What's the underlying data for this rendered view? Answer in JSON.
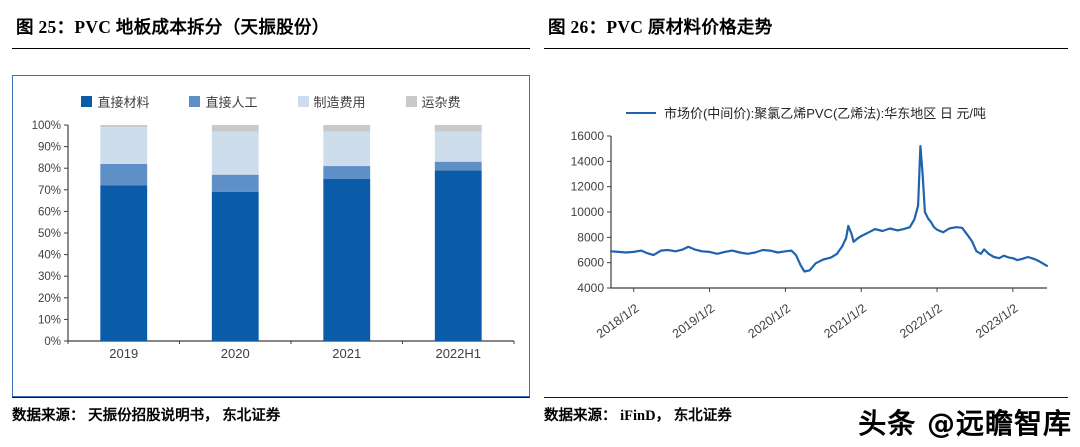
{
  "left_panel": {
    "title": "图 25：PVC 地板成本拆分（天振股份）",
    "source": "数据来源： 天振份招股说明书， 东北证券"
  },
  "right_panel": {
    "title": "图 26：PVC 原材料价格走势",
    "source": "数据来源： iFinD， 东北证券"
  },
  "watermark": {
    "text": "头条 @远瞻智库"
  },
  "colors": {
    "frame_blue": "#3E6FB5",
    "axis_gray": "#3f3f3f"
  },
  "chart_data": [
    {
      "id": "pvc-floor-cost-breakdown",
      "type": "bar",
      "stacked": true,
      "title": "PVC 地板成本拆分（天振股份）",
      "categories": [
        "2019",
        "2020",
        "2021",
        "2022H1"
      ],
      "series": [
        {
          "name": "直接材料",
          "color": "#0B5CA8",
          "values": [
            72,
            69,
            75,
            79
          ]
        },
        {
          "name": "直接人工",
          "color": "#5F8FC7",
          "values": [
            10,
            8,
            6,
            4
          ]
        },
        {
          "name": "制造费用",
          "color": "#CEDDEC",
          "values": [
            17,
            20,
            16,
            14
          ]
        },
        {
          "name": "运杂费",
          "color": "#C9C9C9",
          "values": [
            1,
            3,
            3,
            3
          ]
        }
      ],
      "xlabel": "",
      "ylabel": "",
      "ylim": [
        0,
        100
      ],
      "ytick_step": 10,
      "ytick_format": "percent",
      "grid": false,
      "legend_position": "top"
    },
    {
      "id": "pvc-raw-material-price",
      "type": "line",
      "title": "PVC 原材料价格走势",
      "series_name": "市场价(中间价):聚氯乙烯PVC(乙烯法):华东地区 日 元/吨",
      "color": "#1F63AF",
      "xlabel": "",
      "ylabel": "",
      "ylim": [
        4000,
        16000
      ],
      "ytick_step": 2000,
      "xlim": [
        2017.7,
        2023.45
      ],
      "xticks": [
        {
          "t": 2018,
          "label": "2018/1/2"
        },
        {
          "t": 2019,
          "label": "2019/1/2"
        },
        {
          "t": 2020,
          "label": "2020/1/2"
        },
        {
          "t": 2021,
          "label": "2021/1/2"
        },
        {
          "t": 2022,
          "label": "2022/1/2"
        },
        {
          "t": 2023,
          "label": "2023/1/2"
        }
      ],
      "grid": false,
      "legend_position": "top",
      "points": [
        [
          2017.7,
          6900
        ],
        [
          2017.8,
          6850
        ],
        [
          2017.9,
          6800
        ],
        [
          2018.0,
          6850
        ],
        [
          2018.1,
          6950
        ],
        [
          2018.18,
          6750
        ],
        [
          2018.26,
          6600
        ],
        [
          2018.36,
          6950
        ],
        [
          2018.45,
          7000
        ],
        [
          2018.55,
          6900
        ],
        [
          2018.65,
          7050
        ],
        [
          2018.72,
          7250
        ],
        [
          2018.8,
          7050
        ],
        [
          2018.9,
          6900
        ],
        [
          2019.0,
          6850
        ],
        [
          2019.1,
          6700
        ],
        [
          2019.2,
          6850
        ],
        [
          2019.3,
          6950
        ],
        [
          2019.4,
          6800
        ],
        [
          2019.5,
          6700
        ],
        [
          2019.6,
          6800
        ],
        [
          2019.7,
          7000
        ],
        [
          2019.8,
          6950
        ],
        [
          2019.9,
          6800
        ],
        [
          2020.0,
          6900
        ],
        [
          2020.08,
          6950
        ],
        [
          2020.14,
          6600
        ],
        [
          2020.2,
          5800
        ],
        [
          2020.25,
          5300
        ],
        [
          2020.32,
          5400
        ],
        [
          2020.4,
          5950
        ],
        [
          2020.5,
          6250
        ],
        [
          2020.6,
          6400
        ],
        [
          2020.68,
          6700
        ],
        [
          2020.75,
          7300
        ],
        [
          2020.8,
          7950
        ],
        [
          2020.83,
          8900
        ],
        [
          2020.87,
          8300
        ],
        [
          2020.9,
          7650
        ],
        [
          2020.95,
          7900
        ],
        [
          2021.0,
          8100
        ],
        [
          2021.1,
          8400
        ],
        [
          2021.18,
          8650
        ],
        [
          2021.28,
          8500
        ],
        [
          2021.38,
          8700
        ],
        [
          2021.48,
          8550
        ],
        [
          2021.56,
          8650
        ],
        [
          2021.64,
          8800
        ],
        [
          2021.7,
          9400
        ],
        [
          2021.75,
          10500
        ],
        [
          2021.78,
          15200
        ],
        [
          2021.81,
          13000
        ],
        [
          2021.84,
          10000
        ],
        [
          2021.88,
          9500
        ],
        [
          2021.92,
          9200
        ],
        [
          2021.96,
          8800
        ],
        [
          2022.0,
          8600
        ],
        [
          2022.08,
          8400
        ],
        [
          2022.16,
          8700
        ],
        [
          2022.25,
          8800
        ],
        [
          2022.33,
          8750
        ],
        [
          2022.4,
          8200
        ],
        [
          2022.46,
          7700
        ],
        [
          2022.52,
          6900
        ],
        [
          2022.58,
          6700
        ],
        [
          2022.62,
          7050
        ],
        [
          2022.68,
          6700
        ],
        [
          2022.75,
          6450
        ],
        [
          2022.82,
          6350
        ],
        [
          2022.88,
          6550
        ],
        [
          2022.95,
          6400
        ],
        [
          2023.0,
          6350
        ],
        [
          2023.06,
          6200
        ],
        [
          2023.12,
          6300
        ],
        [
          2023.2,
          6450
        ],
        [
          2023.28,
          6300
        ],
        [
          2023.35,
          6100
        ],
        [
          2023.42,
          5850
        ],
        [
          2023.45,
          5750
        ]
      ]
    }
  ]
}
